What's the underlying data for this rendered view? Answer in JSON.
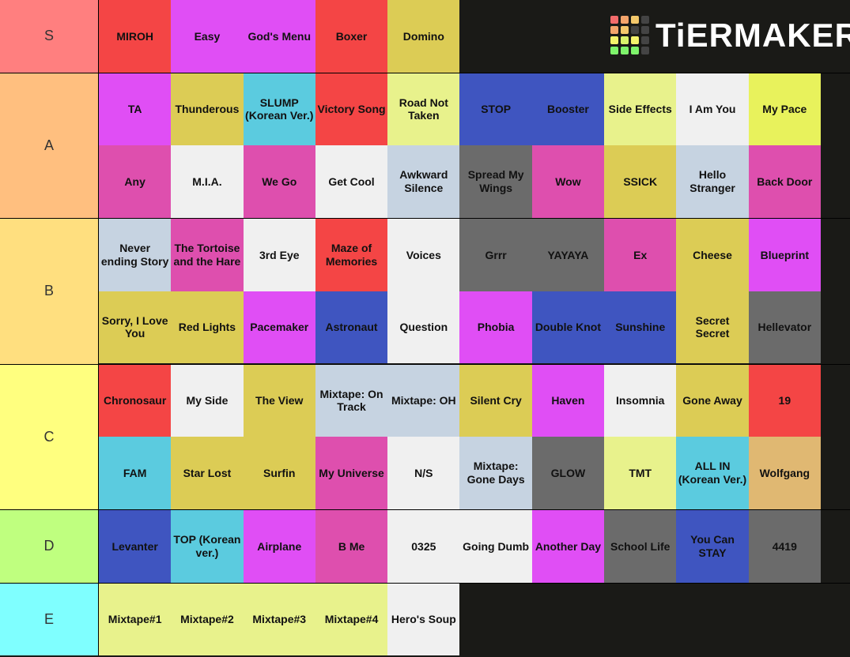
{
  "logo": "TiERMAKER",
  "tiers": [
    {
      "label": "S",
      "color": "#ff7f7f",
      "items": [
        {
          "text": "MIROH",
          "color": "#f44545"
        },
        {
          "text": "Easy",
          "color": "#e04ef5"
        },
        {
          "text": "God's Menu",
          "color": "#e04ef5"
        },
        {
          "text": "Boxer",
          "color": "#f44545"
        },
        {
          "text": "Domino",
          "color": "#dccc55"
        }
      ]
    },
    {
      "label": "A",
      "color": "#ffbf7f",
      "items": [
        {
          "text": "TA",
          "color": "#e04ef5"
        },
        {
          "text": "Thunderous",
          "color": "#dccc55"
        },
        {
          "text": "SLUMP (Korean Ver.)",
          "color": "#5bcbdf"
        },
        {
          "text": "Victory Song",
          "color": "#f44545"
        },
        {
          "text": "Road Not Taken",
          "color": "#e8f28c"
        },
        {
          "text": "STOP",
          "color": "#3f55c0"
        },
        {
          "text": "Booster",
          "color": "#3f55c0"
        },
        {
          "text": "Side Effects",
          "color": "#e8f28c"
        },
        {
          "text": "I Am You",
          "color": "#f0f0f0"
        },
        {
          "text": "My Pace",
          "color": "#e8f25c"
        },
        {
          "text": "Any",
          "color": "#de4fae"
        },
        {
          "text": "M.I.A.",
          "color": "#f0f0f0"
        },
        {
          "text": "We Go",
          "color": "#de4fae"
        },
        {
          "text": "Get Cool",
          "color": "#f0f0f0"
        },
        {
          "text": "Awkward Silence",
          "color": "#c6d3e1"
        },
        {
          "text": "Spread My Wings",
          "color": "#6b6b6b"
        },
        {
          "text": "Wow",
          "color": "#de4fae"
        },
        {
          "text": "SSICK",
          "color": "#dccc55"
        },
        {
          "text": "Hello Stranger",
          "color": "#c6d3e1"
        },
        {
          "text": "Back Door",
          "color": "#de4fae"
        }
      ]
    },
    {
      "label": "B",
      "color": "#ffdf7f",
      "items": [
        {
          "text": "Never ending Story",
          "color": "#c6d3e1"
        },
        {
          "text": "The Tortoise and the Hare",
          "color": "#de4fae"
        },
        {
          "text": "3rd Eye",
          "color": "#f0f0f0"
        },
        {
          "text": "Maze of Memories",
          "color": "#f44545"
        },
        {
          "text": "Voices",
          "color": "#f0f0f0"
        },
        {
          "text": "Grrr",
          "color": "#6b6b6b"
        },
        {
          "text": "YAYAYA",
          "color": "#6b6b6b"
        },
        {
          "text": "Ex",
          "color": "#de4fae"
        },
        {
          "text": "Cheese",
          "color": "#dccc55"
        },
        {
          "text": "Blueprint",
          "color": "#e04ef5"
        },
        {
          "text": "Sorry, I Love You",
          "color": "#dccc55"
        },
        {
          "text": "Red Lights",
          "color": "#dccc55"
        },
        {
          "text": "Pacemaker",
          "color": "#e04ef5"
        },
        {
          "text": "Astronaut",
          "color": "#3f55c0"
        },
        {
          "text": "Question",
          "color": "#f0f0f0"
        },
        {
          "text": "Phobia",
          "color": "#e04ef5"
        },
        {
          "text": "Double Knot",
          "color": "#3f55c0"
        },
        {
          "text": "Sunshine",
          "color": "#3f55c0"
        },
        {
          "text": "Secret Secret",
          "color": "#dccc55"
        },
        {
          "text": "Hellevator",
          "color": "#6b6b6b"
        }
      ]
    },
    {
      "label": "C",
      "color": "#ffff7f",
      "items": [
        {
          "text": "Chronosaur",
          "color": "#f44545"
        },
        {
          "text": "My Side",
          "color": "#f0f0f0"
        },
        {
          "text": "The View",
          "color": "#dccc55"
        },
        {
          "text": "Mixtape: On Track",
          "color": "#c6d3e1"
        },
        {
          "text": "Mixtape: OH",
          "color": "#c6d3e1"
        },
        {
          "text": "Silent Cry",
          "color": "#dccc55"
        },
        {
          "text": "Haven",
          "color": "#e04ef5"
        },
        {
          "text": "Insomnia",
          "color": "#f0f0f0"
        },
        {
          "text": "Gone Away",
          "color": "#dccc55"
        },
        {
          "text": "19",
          "color": "#f44545"
        },
        {
          "text": "FAM",
          "color": "#5bcbdf"
        },
        {
          "text": "Star Lost",
          "color": "#dccc55"
        },
        {
          "text": "Surfin",
          "color": "#dccc55"
        },
        {
          "text": "My Universe",
          "color": "#de4fae"
        },
        {
          "text": "N/S",
          "color": "#f0f0f0"
        },
        {
          "text": "Mixtape: Gone Days",
          "color": "#c6d3e1"
        },
        {
          "text": "GLOW",
          "color": "#6b6b6b"
        },
        {
          "text": "TMT",
          "color": "#e8f28c"
        },
        {
          "text": "ALL IN (Korean Ver.)",
          "color": "#5bcbdf"
        },
        {
          "text": "Wolfgang",
          "color": "#e0b872"
        }
      ]
    },
    {
      "label": "D",
      "color": "#bfff7f",
      "items": [
        {
          "text": "Levanter",
          "color": "#3f55c0"
        },
        {
          "text": "TOP (Korean ver.)",
          "color": "#5bcbdf"
        },
        {
          "text": "Airplane",
          "color": "#e04ef5"
        },
        {
          "text": "B Me",
          "color": "#de4fae"
        },
        {
          "text": "0325",
          "color": "#f0f0f0"
        },
        {
          "text": "Going Dumb",
          "color": "#f0f0f0"
        },
        {
          "text": "Another Day",
          "color": "#e04ef5"
        },
        {
          "text": "School Life",
          "color": "#6b6b6b"
        },
        {
          "text": "You Can STAY",
          "color": "#3f55c0"
        },
        {
          "text": "4419",
          "color": "#6b6b6b"
        }
      ]
    },
    {
      "label": "E",
      "color": "#7fffff",
      "items": [
        {
          "text": "Mixtape#1",
          "color": "#e8f28c"
        },
        {
          "text": "Mixtape#2",
          "color": "#e8f28c"
        },
        {
          "text": "Mixtape#3",
          "color": "#e8f28c"
        },
        {
          "text": "Mixtape#4",
          "color": "#e8f28c"
        },
        {
          "text": "Hero's Soup",
          "color": "#f0f0f0"
        }
      ]
    }
  ]
}
